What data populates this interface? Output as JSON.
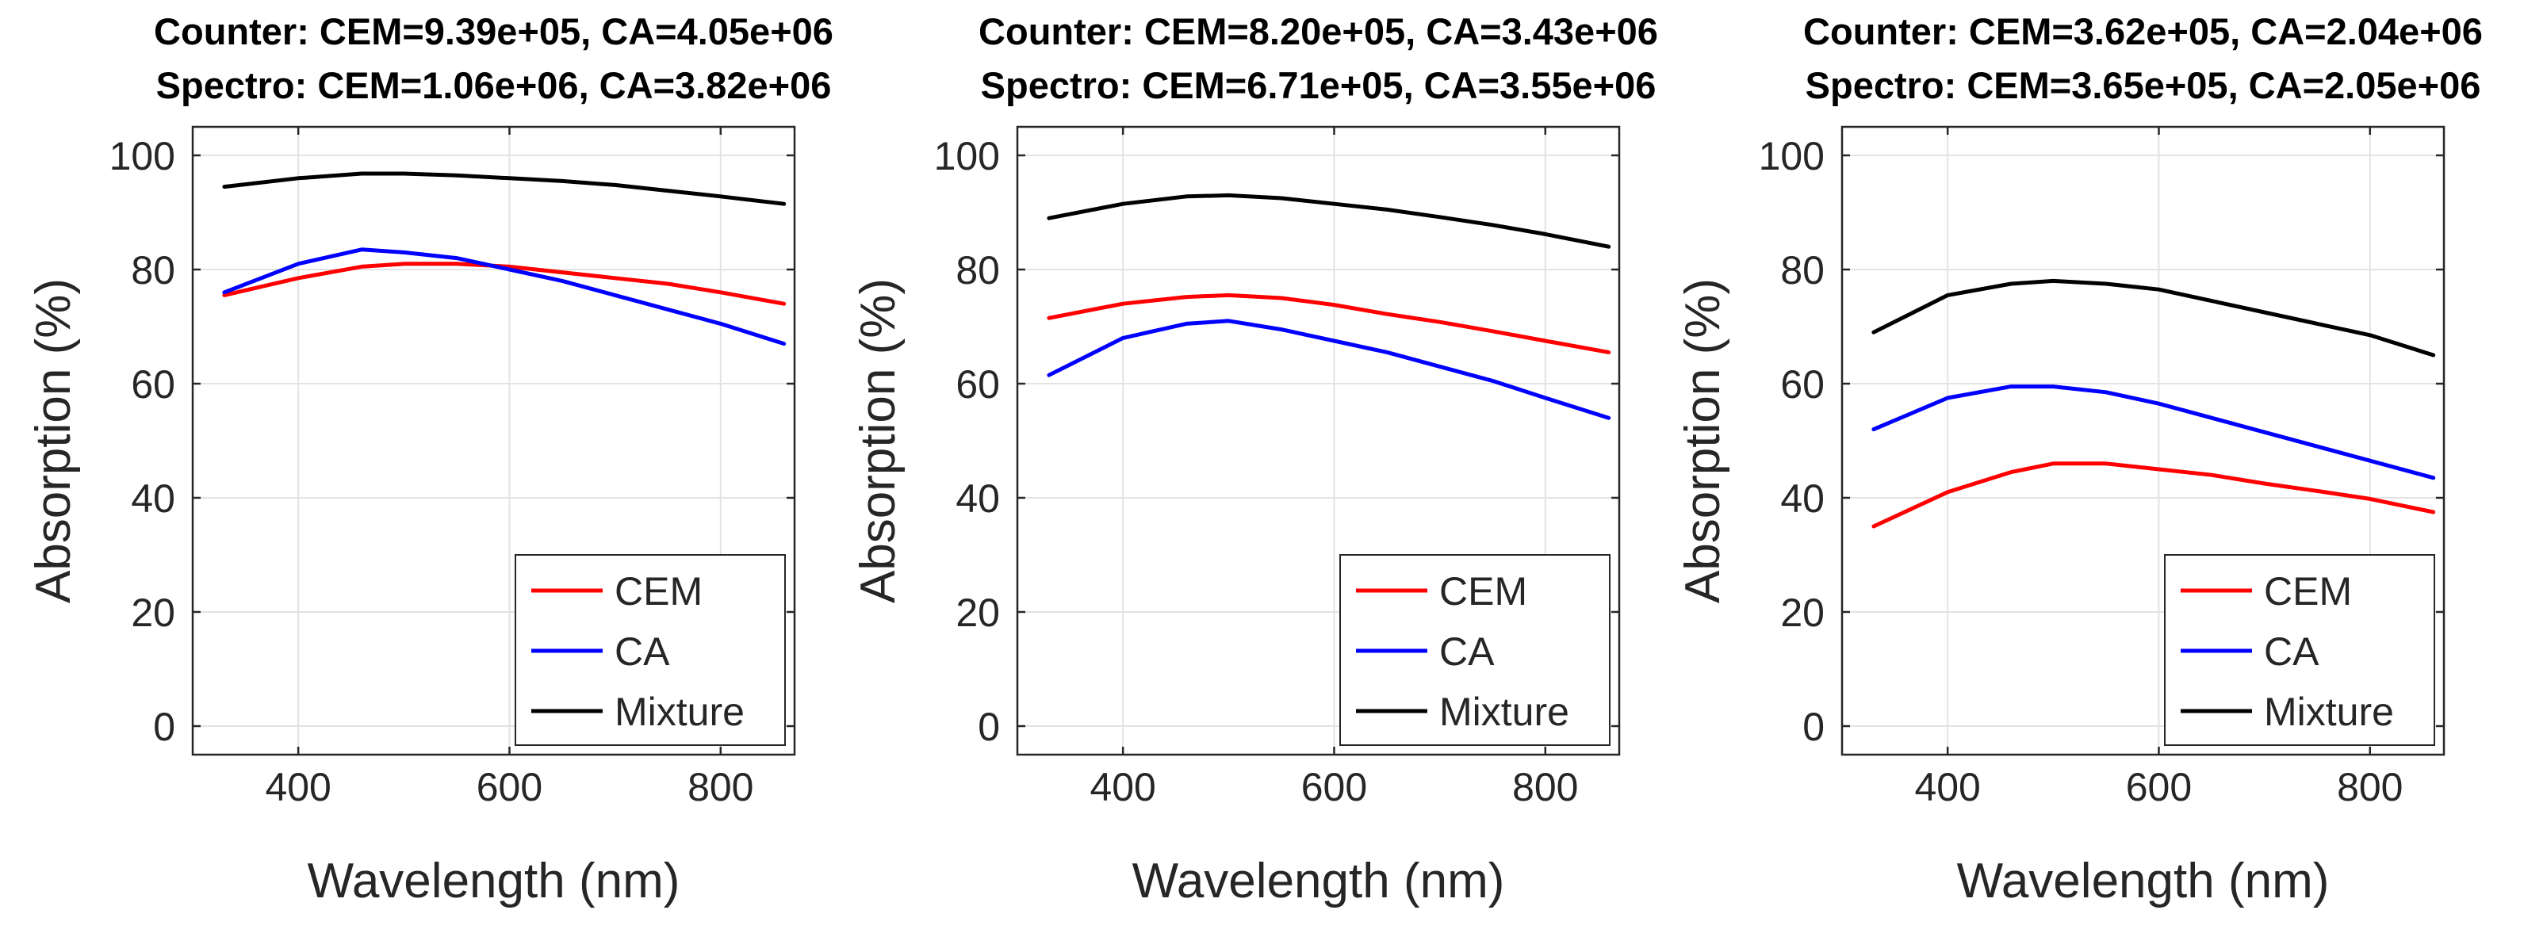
{
  "chart_data": [
    {
      "type": "line",
      "title_lines": [
        "Counter: CEM=9.39e+05, CA=4.05e+06",
        "Spectro: CEM=1.06e+06, CA=3.82e+06"
      ],
      "xlabel": "Wavelength (nm)",
      "ylabel": "Absorption (%)",
      "xlim": [
        300,
        870
      ],
      "ylim": [
        -5,
        105
      ],
      "xticks": [
        400,
        600,
        800
      ],
      "yticks": [
        0,
        20,
        40,
        60,
        80,
        100
      ],
      "grid": true,
      "legend_position": "bottom-right",
      "x": [
        330,
        400,
        460,
        500,
        550,
        600,
        650,
        700,
        750,
        800,
        860
      ],
      "series": [
        {
          "name": "CEM",
          "color": "#ff0000",
          "values": [
            75.5,
            78.5,
            80.5,
            81,
            81,
            80.5,
            79.5,
            78.5,
            77.5,
            76,
            74
          ]
        },
        {
          "name": "CA",
          "color": "#0000ff",
          "values": [
            76,
            81,
            83.5,
            83,
            82,
            80,
            78,
            75.5,
            73,
            70.5,
            67
          ]
        },
        {
          "name": "Mixture",
          "color": "#000000",
          "values": [
            94.5,
            96,
            96.8,
            96.8,
            96.5,
            96,
            95.5,
            94.8,
            93.8,
            92.8,
            91.5
          ]
        }
      ]
    },
    {
      "type": "line",
      "title_lines": [
        "Counter: CEM=8.20e+05, CA=3.43e+06",
        "Spectro: CEM=6.71e+05, CA=3.55e+06"
      ],
      "xlabel": "Wavelength (nm)",
      "ylabel": "Absorption (%)",
      "xlim": [
        300,
        870
      ],
      "ylim": [
        -5,
        105
      ],
      "xticks": [
        400,
        600,
        800
      ],
      "yticks": [
        0,
        20,
        40,
        60,
        80,
        100
      ],
      "grid": true,
      "legend_position": "bottom-right",
      "x": [
        330,
        400,
        460,
        500,
        550,
        600,
        650,
        700,
        750,
        800,
        860
      ],
      "series": [
        {
          "name": "CEM",
          "color": "#ff0000",
          "values": [
            71.5,
            74,
            75.2,
            75.5,
            75,
            73.8,
            72.2,
            70.8,
            69.2,
            67.5,
            65.5
          ]
        },
        {
          "name": "CA",
          "color": "#0000ff",
          "values": [
            61.5,
            68,
            70.5,
            71,
            69.5,
            67.5,
            65.5,
            63,
            60.5,
            57.5,
            54
          ]
        },
        {
          "name": "Mixture",
          "color": "#000000",
          "values": [
            89,
            91.5,
            92.8,
            93,
            92.5,
            91.5,
            90.5,
            89.2,
            87.8,
            86.2,
            84
          ]
        }
      ]
    },
    {
      "type": "line",
      "title_lines": [
        "Counter: CEM=3.62e+05, CA=2.04e+06",
        "Spectro: CEM=3.65e+05, CA=2.05e+06"
      ],
      "xlabel": "Wavelength (nm)",
      "ylabel": "Absorption (%)",
      "xlim": [
        300,
        870
      ],
      "ylim": [
        -5,
        105
      ],
      "xticks": [
        400,
        600,
        800
      ],
      "yticks": [
        0,
        20,
        40,
        60,
        80,
        100
      ],
      "grid": true,
      "legend_position": "bottom-right",
      "x": [
        330,
        400,
        460,
        500,
        550,
        600,
        650,
        700,
        750,
        800,
        860
      ],
      "series": [
        {
          "name": "CEM",
          "color": "#ff0000",
          "values": [
            35,
            41,
            44.5,
            46,
            46,
            45,
            44,
            42.5,
            41.2,
            39.8,
            37.5
          ]
        },
        {
          "name": "CA",
          "color": "#0000ff",
          "values": [
            52,
            57.5,
            59.5,
            59.5,
            58.5,
            56.5,
            54,
            51.5,
            49,
            46.5,
            43.5
          ]
        },
        {
          "name": "Mixture",
          "color": "#000000",
          "values": [
            69,
            75.5,
            77.5,
            78,
            77.5,
            76.5,
            74.5,
            72.5,
            70.5,
            68.5,
            65
          ]
        }
      ]
    }
  ]
}
